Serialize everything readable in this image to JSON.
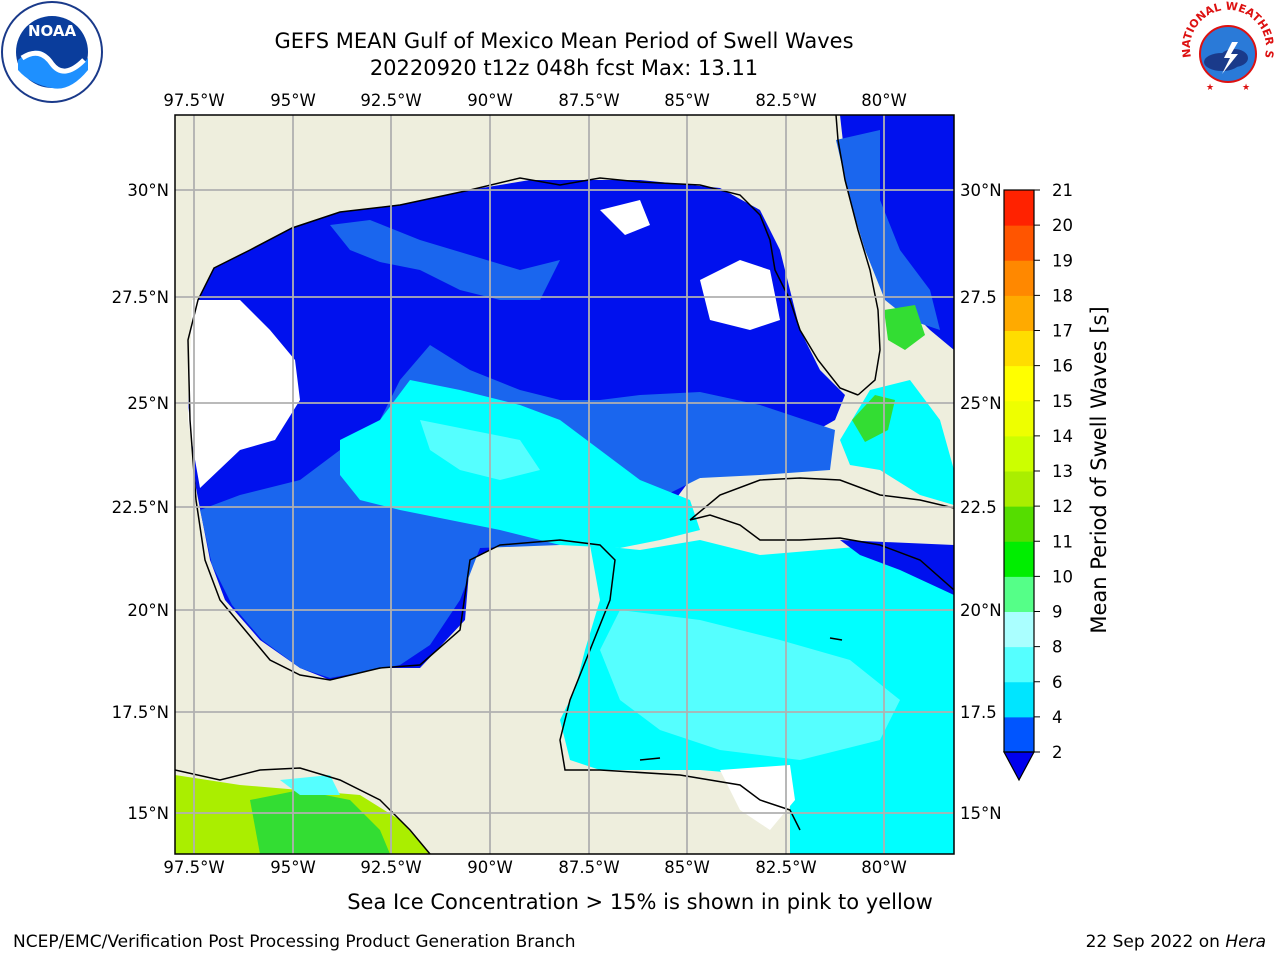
{
  "title": {
    "line1": "GEFS MEAN Gulf of Mexico Mean Period of Swell Waves",
    "line2": "20220920 t12z 048h fcst   Max: 13.11"
  },
  "map": {
    "lon_labels": [
      "97.5°W",
      "95°W",
      "92.5°W",
      "90°W",
      "87.5°W",
      "85°W",
      "82.5°W",
      "80°W"
    ],
    "lat_labels": [
      "30°N",
      "27.5°N",
      "25°N",
      "22.5°N",
      "20°N",
      "17.5°N",
      "15°N"
    ],
    "lat_labels_right": [
      "30°N",
      "27.5",
      "25°N",
      "22.5",
      "20°N",
      "17.5",
      "15°N"
    ],
    "lon_range": [
      -98,
      -78.2
    ],
    "lat_range": [
      14.1,
      31.8
    ],
    "grid": true
  },
  "colorbar": {
    "label": "Mean Period of Swell Waves [s]",
    "ticks": [
      "2",
      "4",
      "6",
      "8",
      "9",
      "10",
      "11",
      "12",
      "13",
      "14",
      "15",
      "16",
      "17",
      "18",
      "19",
      "20",
      "21"
    ],
    "colors": [
      "#0055ff",
      "#00e5ff",
      "#55ffff",
      "#aaffff",
      "#55ff88",
      "#00ee00",
      "#55dd00",
      "#aaee00",
      "#ccff00",
      "#eeff00",
      "#ffff00",
      "#ffdd00",
      "#ffaa00",
      "#ff8800",
      "#ff5500",
      "#ff2200"
    ],
    "extend_color": "#0000ee"
  },
  "colors": {
    "land": "#eeeedd",
    "ocean_dark": "#0011ee",
    "ocean_mid": "#1a66ee",
    "ocean_light": "#00ffff",
    "ocean_pale": "#55ffff",
    "green": "#33dd33",
    "lime": "#aaee00",
    "grid": "#b0b0b0"
  },
  "note": "Sea Ice Concentration > 15% is shown in pink to yellow",
  "footer": {
    "left": "NCEP/EMC/Verification Post Processing Product Generation Branch",
    "right_prefix": "22 Sep 2022 on ",
    "right_host": "Hera"
  },
  "logos": {
    "noaa_text": "NOAA",
    "nws_text": "NATIONAL WEATHER SERVICE"
  }
}
